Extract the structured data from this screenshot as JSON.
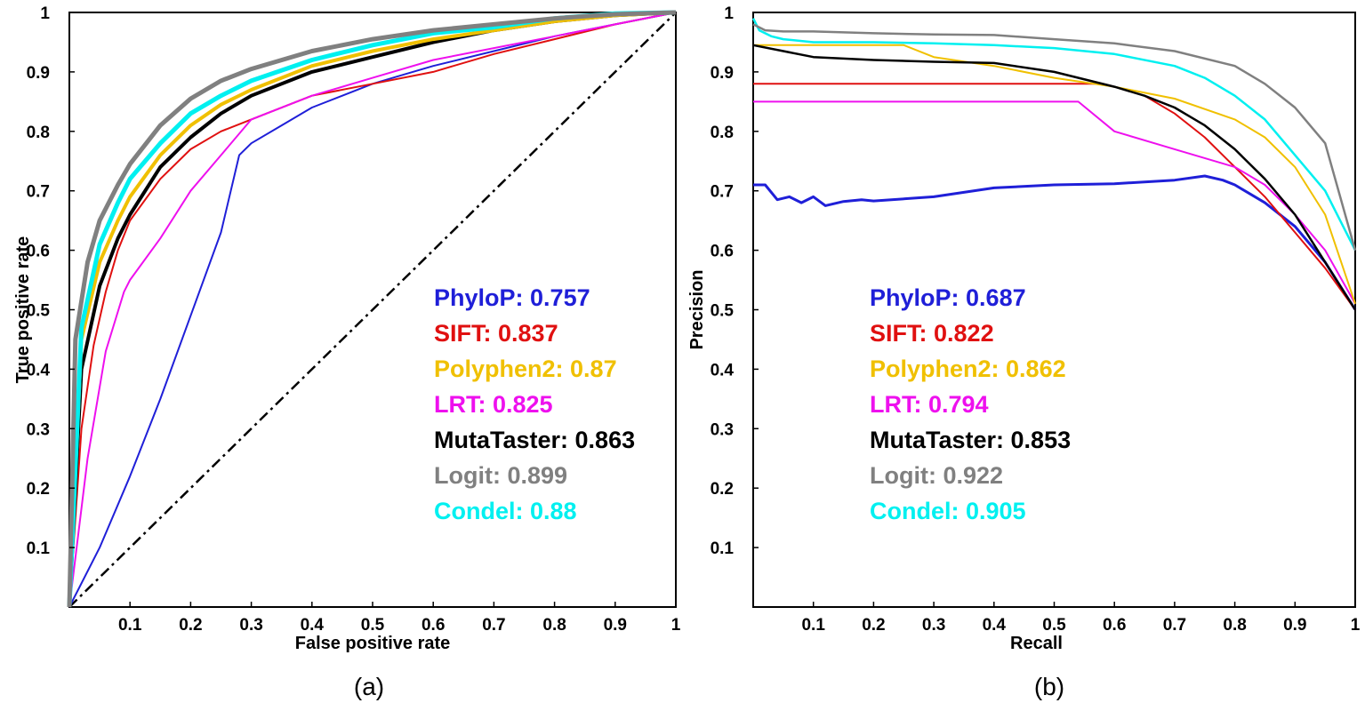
{
  "chart_data": [
    {
      "panel": "(a)",
      "type": "line",
      "xlabel": "False positive rate",
      "ylabel": "True positive rate",
      "xlim": [
        0,
        1
      ],
      "ylim": [
        0,
        1
      ],
      "xticks": [
        "0.1",
        "0.2",
        "0.3",
        "0.4",
        "0.5",
        "0.6",
        "0.7",
        "0.8",
        "0.9",
        "1"
      ],
      "yticks": [
        "0.1",
        "0.2",
        "0.3",
        "0.4",
        "0.5",
        "0.6",
        "0.7",
        "0.8",
        "0.9",
        "1"
      ],
      "legend": [
        {
          "name": "PhyloP",
          "value": "0.757",
          "color": "#1f1fd8"
        },
        {
          "name": "SIFT",
          "value": "0.837",
          "color": "#e01010"
        },
        {
          "name": "Polyphen2",
          "value": "0.87",
          "color": "#f0c000"
        },
        {
          "name": "LRT",
          "value": "0.825",
          "color": "#ee10ee"
        },
        {
          "name": "MutaTaster",
          "value": "0.863",
          "color": "#000000"
        },
        {
          "name": "Logit",
          "value": "0.899",
          "color": "#808080"
        },
        {
          "name": "Condel",
          "value": "0.88",
          "color": "#00f0f0"
        }
      ],
      "series": [
        {
          "key": "diagonal",
          "color": "#000000",
          "dash": true,
          "x": [
            0,
            1
          ],
          "y": [
            0,
            1
          ]
        },
        {
          "key": "PhyloP",
          "color": "#1f1fd8",
          "x": [
            0,
            0.05,
            0.1,
            0.15,
            0.2,
            0.25,
            0.28,
            0.3,
            0.35,
            0.4,
            0.45,
            0.5,
            0.55,
            0.6,
            0.7,
            0.8,
            0.9,
            1
          ],
          "y": [
            0,
            0.1,
            0.22,
            0.35,
            0.49,
            0.63,
            0.76,
            0.78,
            0.81,
            0.84,
            0.86,
            0.88,
            0.895,
            0.91,
            0.935,
            0.96,
            0.98,
            1
          ]
        },
        {
          "key": "SIFT",
          "color": "#e01010",
          "x": [
            0,
            0.02,
            0.04,
            0.06,
            0.08,
            0.1,
            0.15,
            0.2,
            0.25,
            0.3,
            0.4,
            0.5,
            0.6,
            0.7,
            0.8,
            0.9,
            1
          ],
          "y": [
            0,
            0.3,
            0.44,
            0.53,
            0.6,
            0.65,
            0.72,
            0.77,
            0.8,
            0.82,
            0.86,
            0.88,
            0.9,
            0.93,
            0.955,
            0.98,
            1
          ]
        },
        {
          "key": "LRT",
          "color": "#ee10ee",
          "x": [
            0,
            0.03,
            0.06,
            0.09,
            0.1,
            0.15,
            0.2,
            0.25,
            0.3,
            0.4,
            0.5,
            0.6,
            0.7,
            0.8,
            0.9,
            1
          ],
          "y": [
            0,
            0.25,
            0.43,
            0.53,
            0.55,
            0.62,
            0.7,
            0.76,
            0.82,
            0.86,
            0.89,
            0.92,
            0.94,
            0.96,
            0.98,
            1
          ]
        },
        {
          "key": "MutaTaster",
          "color": "#000000",
          "x": [
            0,
            0.02,
            0.05,
            0.08,
            0.1,
            0.15,
            0.2,
            0.25,
            0.3,
            0.4,
            0.5,
            0.6,
            0.7,
            0.8,
            0.9,
            1
          ],
          "y": [
            0,
            0.4,
            0.54,
            0.62,
            0.66,
            0.74,
            0.79,
            0.83,
            0.86,
            0.9,
            0.925,
            0.95,
            0.97,
            0.985,
            0.995,
            1
          ]
        },
        {
          "key": "Polyphen2",
          "color": "#f0c000",
          "x": [
            0,
            0.02,
            0.05,
            0.08,
            0.1,
            0.15,
            0.2,
            0.25,
            0.3,
            0.4,
            0.5,
            0.6,
            0.7,
            0.8,
            0.9,
            1
          ],
          "y": [
            0,
            0.45,
            0.58,
            0.65,
            0.69,
            0.76,
            0.81,
            0.845,
            0.87,
            0.91,
            0.935,
            0.955,
            0.97,
            0.985,
            0.995,
            1
          ]
        },
        {
          "key": "Condel",
          "color": "#00f0f0",
          "x": [
            0,
            0.02,
            0.05,
            0.08,
            0.1,
            0.15,
            0.2,
            0.25,
            0.3,
            0.4,
            0.5,
            0.6,
            0.7,
            0.8,
            0.9,
            1
          ],
          "y": [
            0,
            0.47,
            0.61,
            0.68,
            0.72,
            0.78,
            0.83,
            0.86,
            0.885,
            0.92,
            0.945,
            0.965,
            0.975,
            0.99,
            0.998,
            1
          ]
        },
        {
          "key": "Logit",
          "color": "#808080",
          "x": [
            0,
            0.01,
            0.03,
            0.05,
            0.08,
            0.1,
            0.15,
            0.2,
            0.25,
            0.3,
            0.4,
            0.5,
            0.6,
            0.7,
            0.8,
            0.9,
            1
          ],
          "y": [
            0,
            0.45,
            0.58,
            0.65,
            0.71,
            0.745,
            0.81,
            0.855,
            0.885,
            0.905,
            0.935,
            0.955,
            0.97,
            0.98,
            0.99,
            0.997,
            1
          ]
        }
      ]
    },
    {
      "panel": "(b)",
      "type": "line",
      "xlabel": "Recall",
      "ylabel": "Precision",
      "xlim": [
        0,
        1
      ],
      "ylim": [
        0,
        1
      ],
      "xticks": [
        "0.1",
        "0.2",
        "0.3",
        "0.4",
        "0.5",
        "0.6",
        "0.7",
        "0.8",
        "0.9",
        "1"
      ],
      "yticks": [
        "0.1",
        "0.2",
        "0.3",
        "0.4",
        "0.5",
        "0.6",
        "0.7",
        "0.8",
        "0.9",
        "1"
      ],
      "legend": [
        {
          "name": "PhyloP",
          "value": "0.687",
          "color": "#1f1fd8"
        },
        {
          "name": "SIFT",
          "value": "0.822",
          "color": "#e01010"
        },
        {
          "name": "Polyphen2",
          "value": "0.862",
          "color": "#f0c000"
        },
        {
          "name": "LRT",
          "value": "0.794",
          "color": "#ee10ee"
        },
        {
          "name": "MutaTaster",
          "value": "0.853",
          "color": "#000000"
        },
        {
          "name": "Logit",
          "value": "0.922",
          "color": "#808080"
        },
        {
          "name": "Condel",
          "value": "0.905",
          "color": "#00f0f0"
        }
      ],
      "series": [
        {
          "key": "PhyloP",
          "color": "#1f1fd8",
          "x": [
            0,
            0.02,
            0.04,
            0.06,
            0.08,
            0.1,
            0.12,
            0.15,
            0.18,
            0.2,
            0.3,
            0.4,
            0.5,
            0.6,
            0.7,
            0.75,
            0.78,
            0.8,
            0.85,
            0.9,
            0.95,
            1
          ],
          "y": [
            0.71,
            0.71,
            0.685,
            0.69,
            0.68,
            0.69,
            0.675,
            0.682,
            0.685,
            0.683,
            0.69,
            0.705,
            0.71,
            0.712,
            0.718,
            0.725,
            0.718,
            0.71,
            0.68,
            0.64,
            0.58,
            0.5
          ]
        },
        {
          "key": "SIFT",
          "color": "#e01010",
          "x": [
            0,
            0.1,
            0.2,
            0.3,
            0.4,
            0.5,
            0.58,
            0.6,
            0.65,
            0.7,
            0.75,
            0.8,
            0.85,
            0.9,
            0.95,
            1
          ],
          "y": [
            0.88,
            0.88,
            0.88,
            0.88,
            0.88,
            0.88,
            0.88,
            0.875,
            0.86,
            0.83,
            0.79,
            0.74,
            0.69,
            0.63,
            0.57,
            0.5
          ]
        },
        {
          "key": "LRT",
          "color": "#ee10ee",
          "x": [
            0,
            0.1,
            0.2,
            0.3,
            0.4,
            0.5,
            0.54,
            0.6,
            0.7,
            0.8,
            0.85,
            0.9,
            0.95,
            1
          ],
          "y": [
            0.85,
            0.85,
            0.85,
            0.85,
            0.85,
            0.85,
            0.85,
            0.8,
            0.77,
            0.74,
            0.71,
            0.66,
            0.6,
            0.51
          ]
        },
        {
          "key": "Polyphen2",
          "color": "#f0c000",
          "x": [
            0,
            0.1,
            0.2,
            0.25,
            0.3,
            0.4,
            0.5,
            0.6,
            0.7,
            0.8,
            0.85,
            0.9,
            0.95,
            1
          ],
          "y": [
            0.945,
            0.945,
            0.945,
            0.945,
            0.925,
            0.91,
            0.89,
            0.875,
            0.855,
            0.82,
            0.79,
            0.74,
            0.66,
            0.51
          ]
        },
        {
          "key": "MutaTaster",
          "color": "#000000",
          "x": [
            0,
            0.05,
            0.1,
            0.2,
            0.3,
            0.4,
            0.5,
            0.6,
            0.65,
            0.7,
            0.75,
            0.8,
            0.85,
            0.9,
            0.95,
            1
          ],
          "y": [
            0.945,
            0.935,
            0.925,
            0.92,
            0.917,
            0.915,
            0.9,
            0.875,
            0.86,
            0.84,
            0.81,
            0.77,
            0.72,
            0.66,
            0.58,
            0.5
          ]
        },
        {
          "key": "Condel",
          "color": "#00f0f0",
          "x": [
            0,
            0.01,
            0.03,
            0.05,
            0.1,
            0.2,
            0.3,
            0.4,
            0.5,
            0.6,
            0.7,
            0.75,
            0.8,
            0.85,
            0.9,
            0.95,
            1
          ],
          "y": [
            0.99,
            0.97,
            0.96,
            0.955,
            0.95,
            0.95,
            0.948,
            0.945,
            0.94,
            0.93,
            0.91,
            0.89,
            0.86,
            0.82,
            0.76,
            0.7,
            0.6
          ]
        },
        {
          "key": "Logit",
          "color": "#808080",
          "x": [
            0,
            0.02,
            0.05,
            0.1,
            0.2,
            0.3,
            0.4,
            0.5,
            0.6,
            0.7,
            0.8,
            0.85,
            0.9,
            0.95,
            1
          ],
          "y": [
            0.98,
            0.97,
            0.968,
            0.968,
            0.965,
            0.963,
            0.962,
            0.955,
            0.948,
            0.935,
            0.91,
            0.88,
            0.84,
            0.78,
            0.6
          ]
        }
      ]
    }
  ]
}
